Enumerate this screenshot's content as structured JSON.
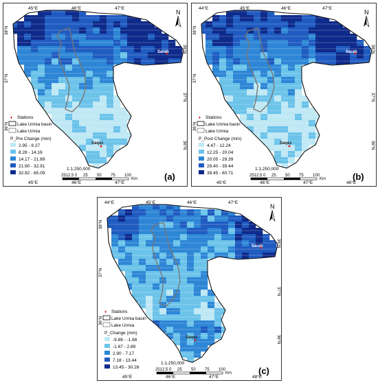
{
  "panels": [
    {
      "id": "a",
      "letter": "(a)",
      "top_ticks": [
        "45°E",
        "46°E",
        "47°E"
      ],
      "bottom_ticks": [
        "45°E",
        "46°E",
        "47°E"
      ],
      "left_ticks": [
        "38°N",
        "37°N",
        "36°N"
      ],
      "right_ticks": [
        "38°N",
        "37°N",
        "36°N"
      ],
      "legend_title": "P_Pre Change (mm)",
      "classes": [
        "2.95 - 8.27",
        "8.28 - 14.16",
        "14.17 - 21.89",
        "21.90 - 32.91",
        "32.92 - 65.09"
      ],
      "dist_ix": [
        3,
        2,
        1,
        0,
        0,
        4,
        3,
        1,
        2,
        3,
        1,
        0,
        2,
        4,
        3,
        1,
        0,
        2,
        3,
        4,
        2,
        1,
        0,
        3
      ]
    },
    {
      "id": "b",
      "letter": "(b)",
      "top_ticks": [
        "44°E",
        "45°E",
        "46°E",
        "47°E"
      ],
      "bottom_ticks": [
        "45°E",
        "46°E",
        "47°E",
        "48°E"
      ],
      "left_ticks": [
        "38°N",
        "37°N",
        "36°N"
      ],
      "right_ticks": [
        "38°N",
        "37°N",
        "36°N"
      ],
      "legend_title": "P_Post Change (mm)",
      "classes": [
        "4.47 - 12.24",
        "12.25 - 20.04",
        "20.05 - 29.39",
        "29.40 - 39.44",
        "39.45 - 60.71"
      ],
      "dist_ix": [
        4,
        3,
        2,
        1,
        0,
        3,
        4,
        2,
        1,
        2,
        0,
        1,
        3,
        4,
        2,
        0,
        1,
        3,
        2,
        4,
        1,
        0,
        2,
        3
      ]
    },
    {
      "id": "c",
      "letter": "(c)",
      "top_ticks": [
        "44°E",
        "45°E",
        "46°E",
        "47°E"
      ],
      "bottom_ticks": [
        "45°E",
        "46°E",
        "47°E",
        "48°E"
      ],
      "left_ticks": [
        "38°N",
        "37°N",
        "36°N"
      ],
      "right_ticks": [
        "38°N",
        "37°N",
        "36°N"
      ],
      "legend_title": "P_Change (mm)",
      "classes": [
        "-9.88 - -1.68",
        "-1.67 - 2.89",
        "2.90 - 7.17",
        "7.18 - 13.44",
        "13.45 - 30.28"
      ],
      "dist_ix": [
        3,
        1,
        2,
        4,
        0,
        2,
        3,
        1,
        4,
        2,
        0,
        3,
        1,
        2,
        4,
        3,
        0,
        1,
        2,
        3,
        4,
        1,
        2,
        0
      ]
    }
  ],
  "legend": {
    "stations": "Stations",
    "basin": "Lake Urmia basin",
    "lake": "Lake Urmia"
  },
  "stations": {
    "north": "Sarab",
    "south": "Saqez"
  },
  "scale": {
    "ratio": "1:1,250,000",
    "ticks": [
      "2512.5 0",
      "25",
      "50",
      "75",
      "100"
    ],
    "unit": "Km"
  },
  "north_label": "N",
  "colors": [
    "#bfe8f5",
    "#6cc3ea",
    "#2e86d6",
    "#1f5bc0",
    "#0e2a8a"
  ]
}
